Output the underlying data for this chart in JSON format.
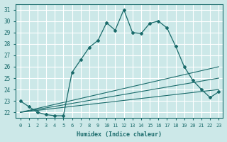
{
  "xlabel": "Humidex (Indice chaleur)",
  "bg_color": "#cce8e8",
  "grid_color": "#ffffff",
  "line_color": "#1a6b6b",
  "xlim": [
    -0.5,
    23.5
  ],
  "ylim": [
    21.5,
    31.5
  ],
  "xticks": [
    0,
    1,
    2,
    3,
    4,
    5,
    6,
    7,
    8,
    9,
    10,
    11,
    12,
    13,
    14,
    15,
    16,
    17,
    18,
    19,
    20,
    21,
    22,
    23
  ],
  "yticks": [
    22,
    23,
    24,
    25,
    26,
    27,
    28,
    29,
    30,
    31
  ],
  "main_line_x": [
    0,
    1,
    2,
    3,
    4,
    5,
    6,
    7,
    8,
    9,
    10,
    11,
    12,
    13,
    14,
    15,
    16,
    17,
    18,
    19,
    20,
    21,
    22,
    23
  ],
  "main_line_y": [
    23.0,
    22.5,
    22.0,
    21.8,
    21.7,
    21.7,
    25.5,
    26.6,
    27.7,
    28.3,
    29.85,
    29.2,
    31.0,
    29.0,
    28.9,
    29.8,
    30.0,
    29.4,
    27.8,
    26.0,
    24.8,
    24.0,
    23.3,
    23.8
  ],
  "fan_lines": [
    {
      "x": [
        0,
        23
      ],
      "y": [
        22.0,
        24.0
      ]
    },
    {
      "x": [
        0,
        23
      ],
      "y": [
        22.0,
        25.0
      ]
    },
    {
      "x": [
        0,
        23
      ],
      "y": [
        22.0,
        26.0
      ]
    }
  ]
}
